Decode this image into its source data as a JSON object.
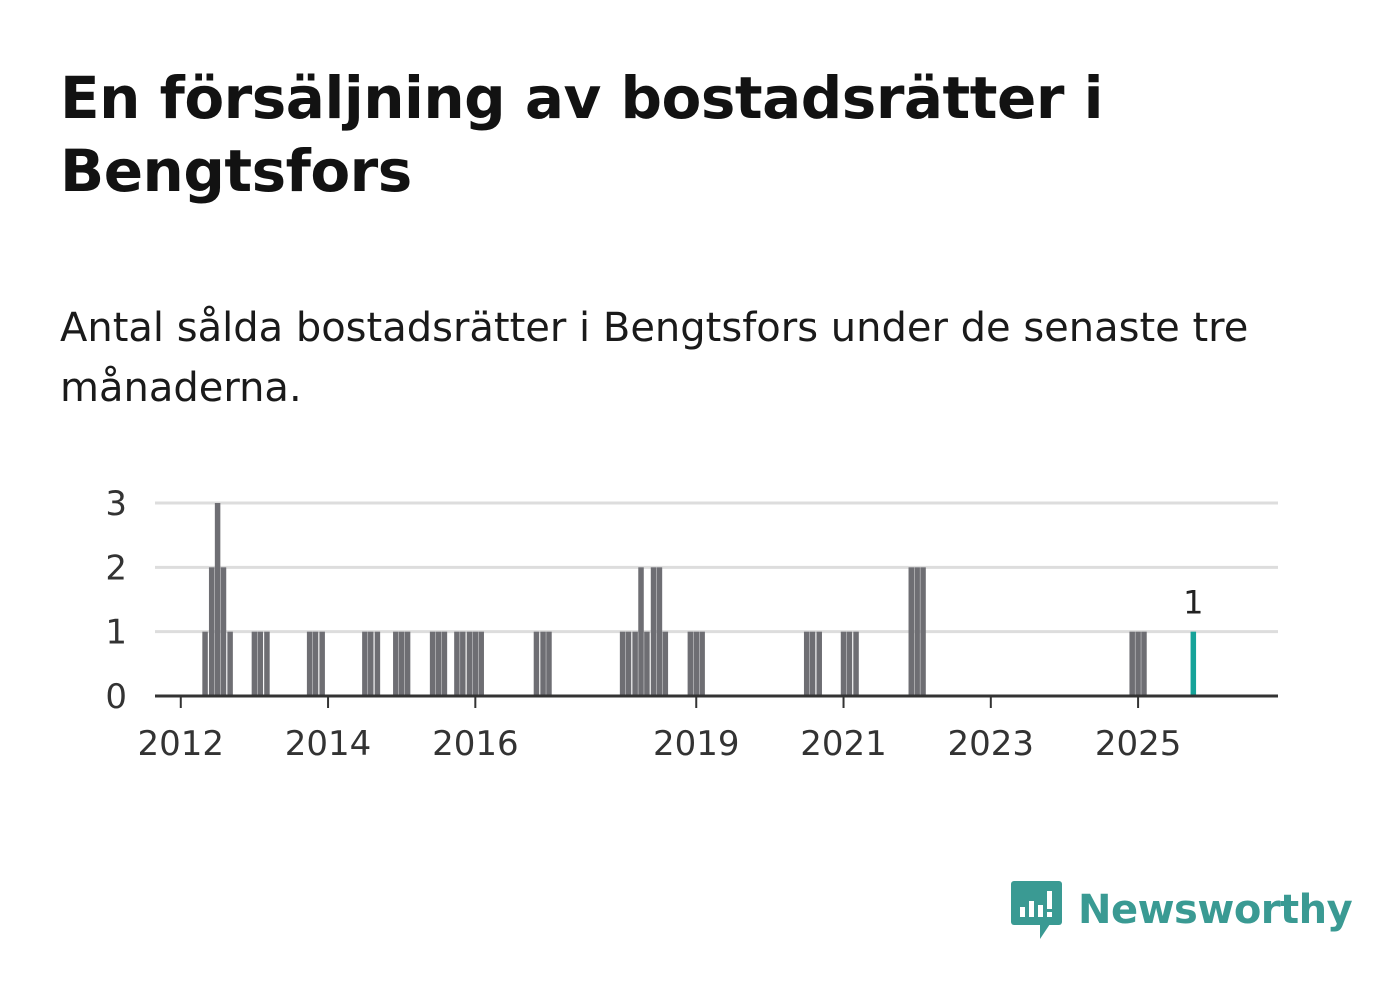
{
  "header": {
    "title": "En försäljning av bostadsrätter i Bengtsfors",
    "subtitle": "Antal sålda bostadsrätter i Bengtsfors under de senaste tre månaderna."
  },
  "brand": {
    "name": "Newsworthy",
    "color": "#3a9a93"
  },
  "colors": {
    "bar": "#6e6e73",
    "highlight": "#16a399",
    "grid": "#dddddd",
    "axis": "#333333"
  },
  "chart_data": {
    "type": "bar",
    "title": "Antal sålda bostadsrätter i Bengtsfors under de senaste tre månaderna.",
    "xlabel": "",
    "ylabel": "",
    "ylim": [
      0,
      3
    ],
    "yticks": [
      0,
      1,
      2,
      3
    ],
    "xlim": [
      2011.65,
      2026.9
    ],
    "xticks": [
      {
        "value": 2012,
        "label": "2012"
      },
      {
        "value": 2014,
        "label": "2014"
      },
      {
        "value": 2016,
        "label": "2016"
      },
      {
        "value": 2019,
        "label": "2019"
      },
      {
        "value": 2021,
        "label": "2021"
      },
      {
        "value": 2023,
        "label": "2023"
      },
      {
        "value": 2025,
        "label": "2025"
      }
    ],
    "grid": true,
    "series": [
      {
        "name": "Sålda bostadsrätter",
        "points": [
          {
            "x": 2012.33,
            "y": 1
          },
          {
            "x": 2012.42,
            "y": 2
          },
          {
            "x": 2012.5,
            "y": 3
          },
          {
            "x": 2012.58,
            "y": 2
          },
          {
            "x": 2012.67,
            "y": 1
          },
          {
            "x": 2013.0,
            "y": 1
          },
          {
            "x": 2013.08,
            "y": 1
          },
          {
            "x": 2013.17,
            "y": 1
          },
          {
            "x": 2013.75,
            "y": 1
          },
          {
            "x": 2013.83,
            "y": 1
          },
          {
            "x": 2013.92,
            "y": 1
          },
          {
            "x": 2014.5,
            "y": 1
          },
          {
            "x": 2014.58,
            "y": 1
          },
          {
            "x": 2014.67,
            "y": 1
          },
          {
            "x": 2014.92,
            "y": 1
          },
          {
            "x": 2015.0,
            "y": 1
          },
          {
            "x": 2015.08,
            "y": 1
          },
          {
            "x": 2015.42,
            "y": 1
          },
          {
            "x": 2015.5,
            "y": 1
          },
          {
            "x": 2015.58,
            "y": 1
          },
          {
            "x": 2015.75,
            "y": 1
          },
          {
            "x": 2015.83,
            "y": 1
          },
          {
            "x": 2015.92,
            "y": 1
          },
          {
            "x": 2016.0,
            "y": 1
          },
          {
            "x": 2016.08,
            "y": 1
          },
          {
            "x": 2016.83,
            "y": 1
          },
          {
            "x": 2016.92,
            "y": 1
          },
          {
            "x": 2017.0,
            "y": 1
          },
          {
            "x": 2018.0,
            "y": 1
          },
          {
            "x": 2018.08,
            "y": 1
          },
          {
            "x": 2018.17,
            "y": 1
          },
          {
            "x": 2018.25,
            "y": 2
          },
          {
            "x": 2018.33,
            "y": 1
          },
          {
            "x": 2018.42,
            "y": 2
          },
          {
            "x": 2018.5,
            "y": 2
          },
          {
            "x": 2018.58,
            "y": 1
          },
          {
            "x": 2018.92,
            "y": 1
          },
          {
            "x": 2019.0,
            "y": 1
          },
          {
            "x": 2019.08,
            "y": 1
          },
          {
            "x": 2020.5,
            "y": 1
          },
          {
            "x": 2020.58,
            "y": 1
          },
          {
            "x": 2020.67,
            "y": 1
          },
          {
            "x": 2021.0,
            "y": 1
          },
          {
            "x": 2021.08,
            "y": 1
          },
          {
            "x": 2021.17,
            "y": 1
          },
          {
            "x": 2021.92,
            "y": 2
          },
          {
            "x": 2022.0,
            "y": 2
          },
          {
            "x": 2022.08,
            "y": 2
          },
          {
            "x": 2024.92,
            "y": 1
          },
          {
            "x": 2025.0,
            "y": 1
          },
          {
            "x": 2025.08,
            "y": 1
          }
        ]
      },
      {
        "name": "Senaste tre månaderna",
        "points": [
          {
            "x": 2025.75,
            "y": 1,
            "label": "1"
          }
        ]
      }
    ]
  }
}
